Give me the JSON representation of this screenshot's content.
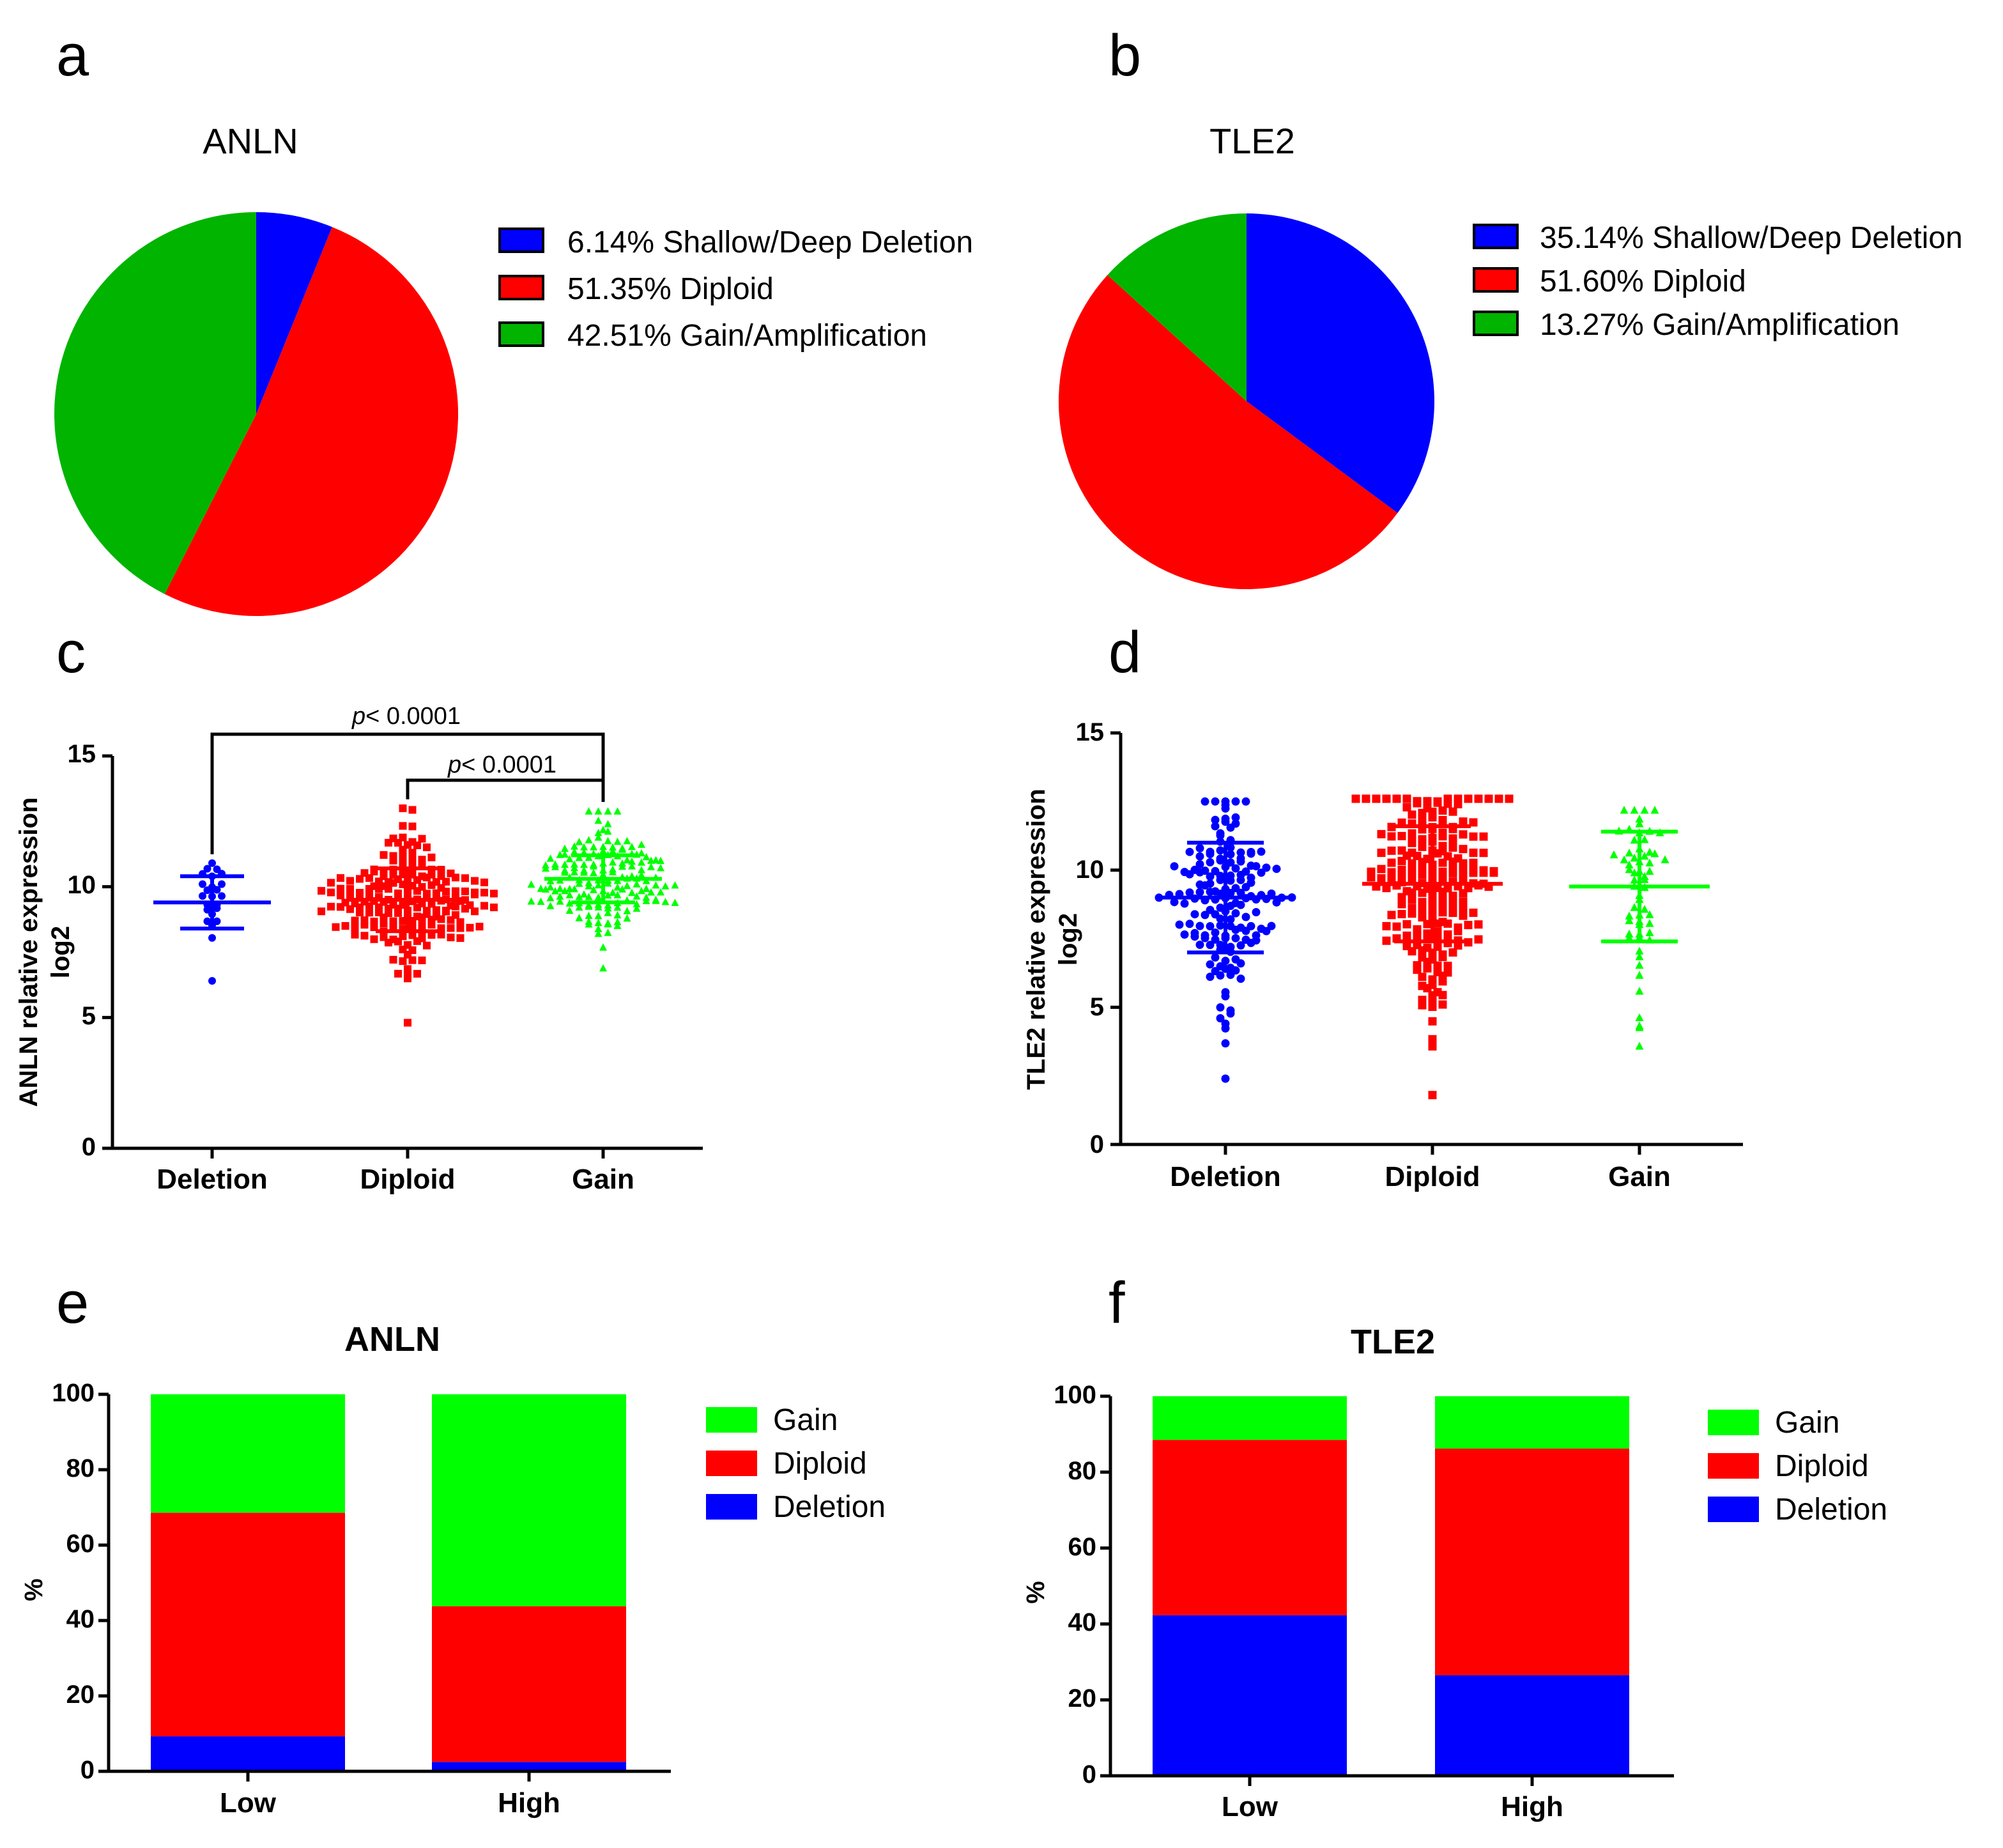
{
  "chart_data": [
    {
      "type": "pie",
      "panel": "a",
      "title": "ANLN",
      "slices": [
        {
          "label": "6.14%  Shallow/Deep Deletion",
          "value": 6.14,
          "color": "#0000ff"
        },
        {
          "label": "51.35%  Diploid",
          "value": 51.35,
          "color": "#ff0000"
        },
        {
          "label": "42.51%  Gain/Amplification",
          "value": 42.51,
          "color": "#00b400"
        }
      ]
    },
    {
      "type": "pie",
      "panel": "b",
      "title": "TLE2",
      "slices": [
        {
          "label": "35.14%  Shallow/Deep Deletion",
          "value": 35.14,
          "color": "#0000ff"
        },
        {
          "label": "51.60%  Diploid",
          "value": 51.6,
          "color": "#ff0000"
        },
        {
          "label": "13.27%  Gain/Amplification",
          "value": 13.27,
          "color": "#00b400"
        }
      ]
    },
    {
      "type": "scatter",
      "panel": "c",
      "ylabel_line1": "ANLN relative expression",
      "ylabel_line2": "log2",
      "ylim": [
        0,
        15
      ],
      "yticks": [
        "0",
        "5",
        "10",
        "15"
      ],
      "categories": [
        "Deletion",
        "Diploid",
        "Gain"
      ],
      "groups": [
        {
          "name": "Deletion",
          "color": "#0000ff",
          "marker": "circle",
          "n": 24,
          "mean": 9.4,
          "sd": 1.0,
          "min": 6.4,
          "max": 10.9
        },
        {
          "name": "Diploid",
          "color": "#ff0000",
          "marker": "square",
          "n": 210,
          "mean": 9.5,
          "sd": 1.2,
          "min": 4.8,
          "max": 13.0
        },
        {
          "name": "Gain",
          "color": "#00ff00",
          "marker": "triangle",
          "n": 175,
          "mean": 10.3,
          "sd": 0.9,
          "min": 6.9,
          "max": 12.9
        }
      ],
      "annotations": [
        {
          "from": "Deletion",
          "to": "Gain",
          "text_italic": "p",
          "text": "< 0.0001"
        },
        {
          "from": "Diploid",
          "to": "Gain",
          "text_italic": "p",
          "text": "< 0.0001"
        }
      ]
    },
    {
      "type": "scatter",
      "panel": "d",
      "ylabel_line1": "TLE2 relative expression",
      "ylabel_line2": "log2",
      "ylim": [
        0,
        15
      ],
      "yticks": [
        "0",
        "5",
        "10",
        "15"
      ],
      "categories": [
        "Deletion",
        "Diploid",
        "Gain"
      ],
      "groups": [
        {
          "name": "Deletion",
          "color": "#0000ff",
          "marker": "circle",
          "n": 165,
          "mean": 9.0,
          "sd": 2.0,
          "min": 2.4,
          "max": 12.5
        },
        {
          "name": "Diploid",
          "color": "#ff0000",
          "marker": "square",
          "n": 235,
          "mean": 9.5,
          "sd": 2.1,
          "min": 1.8,
          "max": 12.6
        },
        {
          "name": "Gain",
          "color": "#00ff00",
          "marker": "triangle",
          "n": 60,
          "mean": 9.4,
          "sd": 2.0,
          "min": 3.6,
          "max": 12.2
        }
      ]
    },
    {
      "type": "bar",
      "stacked": true,
      "panel": "e",
      "title": "ANLN",
      "ylabel": "%",
      "ylim": [
        0,
        100
      ],
      "yticks": [
        "0",
        "20",
        "40",
        "60",
        "80",
        "100"
      ],
      "categories": [
        "Low",
        "High"
      ],
      "series": [
        {
          "name": "Deletion",
          "color": "#0000ff",
          "values": [
            9.3,
            2.5
          ]
        },
        {
          "name": "Diploid",
          "color": "#ff0000",
          "values": [
            59.3,
            41.3
          ]
        },
        {
          "name": "Gain",
          "color": "#00ff00",
          "values": [
            31.4,
            56.2
          ]
        }
      ],
      "legend": [
        "Gain",
        "Diploid",
        "Deletion"
      ]
    },
    {
      "type": "bar",
      "stacked": true,
      "panel": "f",
      "title": "TLE2",
      "ylabel": "%",
      "ylim": [
        0,
        100
      ],
      "yticks": [
        "0",
        "20",
        "40",
        "60",
        "80",
        "100"
      ],
      "categories": [
        "Low",
        "High"
      ],
      "series": [
        {
          "name": "Deletion",
          "color": "#0000ff",
          "values": [
            42.3,
            26.5
          ]
        },
        {
          "name": "Diploid",
          "color": "#ff0000",
          "values": [
            46.2,
            59.7
          ]
        },
        {
          "name": "Gain",
          "color": "#00ff00",
          "values": [
            11.5,
            13.8
          ]
        }
      ],
      "legend": [
        "Gain",
        "Diploid",
        "Deletion"
      ]
    }
  ]
}
